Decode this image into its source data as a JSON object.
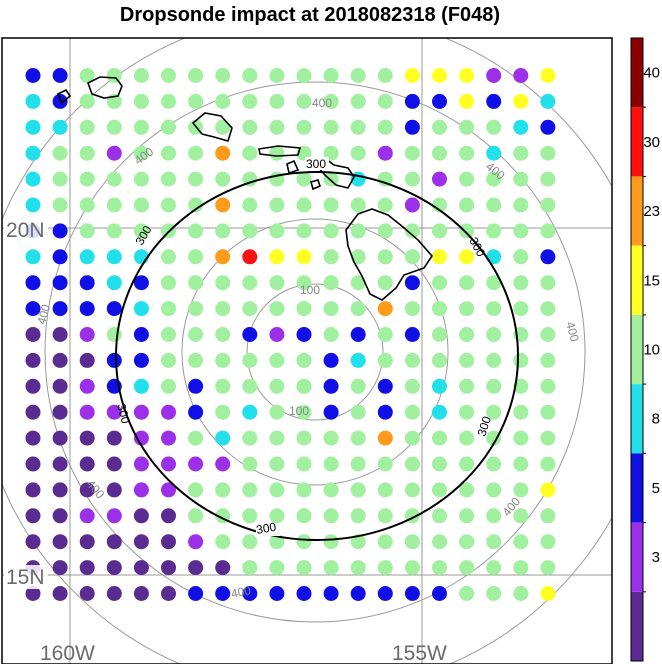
{
  "title": "Dropsonde impact at 2018082318 (F048)",
  "lon_labels": [
    "160W",
    "155W"
  ],
  "lat_labels": [
    "20N",
    "15N"
  ],
  "contour_labels": {
    "inner": "100",
    "mid": "300",
    "outer": "400"
  },
  "colorbar": {
    "labels": [
      "3",
      "5",
      "8",
      "10",
      "15",
      "23",
      "30",
      "40"
    ],
    "colors": [
      "#5a2c91",
      "#9b30e8",
      "#1010e6",
      "#22e0ea",
      "#a0f0a0",
      "#ffff22",
      "#ff9a1a",
      "#ff1010",
      "#8b0000"
    ]
  },
  "chart_data": {
    "type": "heatmap",
    "title": "Dropsonde impact at 2018082318 (F048)",
    "rows": 21,
    "cols": 20,
    "levels": [
      3,
      5,
      8,
      10,
      15,
      23,
      30,
      40
    ],
    "legend": "colorbar-right",
    "grid_codes": [
      "BB444444444444B66556",
      "CB444444444444BBBB5C",
      "CC444444444444B444CB",
      "C4454444444445444C44",
      "C44444444444C4454444",
      "C4444444444444544444",
      "BB444444444444444444",
      "CBCCC444666444466C4B",
      "BBBCB444444444B44444",
      "BBBBC444444444444444",
      "0054B444B5B4B4B44444",
      "000BB444444BC4444444",
      "005BC4B4444B4B4C4444",
      "005555B4C44B4B4C4444",
      "0000554C444444444444",
      "00005555444444444444",
      "00005544444444444444",
      "00550044444444444444",
      "00000054444444444444",
      "00000000444444444444",
      "000000BBBBBBBBBB4444"
    ],
    "grid_overrides": {
      "7-7": 6,
      "7-8": 7,
      "3-7": 6,
      "5-7": 6,
      "14-13": 6,
      "9-13": 6,
      "1-16": 5,
      "0-14": 5,
      "0-15": 5,
      "0-16": 5,
      "1-18": 5,
      "16-19": 5,
      "20-18": 4,
      "20-19": 5
    }
  }
}
